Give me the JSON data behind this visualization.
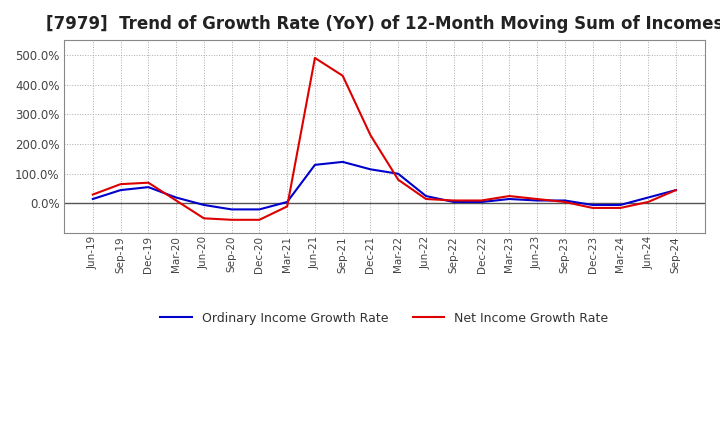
{
  "title": "[7979]  Trend of Growth Rate (YoY) of 12-Month Moving Sum of Incomes",
  "title_fontsize": 12,
  "background_color": "#ffffff",
  "grid_color": "#aaaaaa",
  "x_labels": [
    "Jun-19",
    "Sep-19",
    "Dec-19",
    "Mar-20",
    "Jun-20",
    "Sep-20",
    "Dec-20",
    "Mar-21",
    "Jun-21",
    "Sep-21",
    "Dec-21",
    "Mar-22",
    "Jun-22",
    "Sep-22",
    "Dec-22",
    "Mar-23",
    "Jun-23",
    "Sep-23",
    "Dec-23",
    "Mar-24",
    "Jun-24",
    "Sep-24"
  ],
  "ordinary_income": [
    15,
    45,
    55,
    20,
    -5,
    -20,
    -20,
    5,
    130,
    140,
    115,
    100,
    25,
    5,
    5,
    15,
    10,
    10,
    -5,
    -5,
    20,
    45
  ],
  "net_income": [
    30,
    65,
    70,
    10,
    -50,
    -55,
    -55,
    -10,
    490,
    430,
    230,
    80,
    15,
    10,
    10,
    25,
    15,
    5,
    -15,
    -15,
    5,
    45
  ],
  "ordinary_color": "#0000cc",
  "net_color": "#dd0000",
  "ylim": [
    -100,
    550
  ],
  "yticks": [
    0,
    100,
    200,
    300,
    400,
    500
  ],
  "legend_labels": [
    "Ordinary Income Growth Rate",
    "Net Income Growth Rate"
  ],
  "line_width": 1.5
}
